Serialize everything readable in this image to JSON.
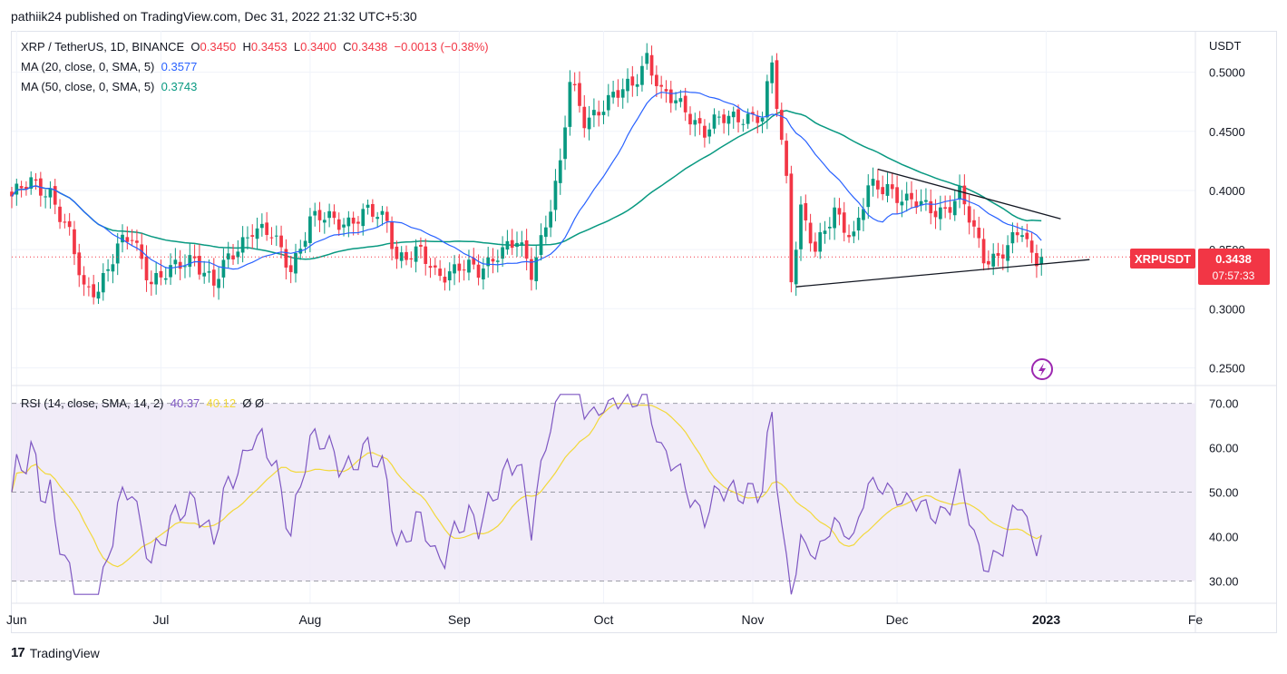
{
  "header": {
    "publisher_text": "pathiik24 published on TradingView.com, Dec 31, 2022 21:32 UTC+5:30"
  },
  "legend": {
    "symbol": "XRP / TetherUS, 1D, BINANCE",
    "o_label": "O",
    "o_value": "0.3450",
    "h_label": "H",
    "h_value": "0.3453",
    "l_label": "L",
    "l_value": "0.3400",
    "c_label": "C",
    "c_value": "0.3438",
    "change": "−0.0013 (−0.38%)",
    "ma20_label": "MA (20, close, 0, SMA, 5)",
    "ma20_value": "0.3577",
    "ma50_label": "MA (50, close, 0, SMA, 5)",
    "ma50_value": "0.3743",
    "rsi_label": "RSI (14, close, SMA, 14, 2)",
    "rsi_value": "40.37",
    "rsi_ma_value": "40.12",
    "rsi_extra": "Ø  Ø"
  },
  "price_badge": {
    "symbol": "XRPUSDT",
    "price": "0.3438",
    "countdown": "07:57:33"
  },
  "footer": {
    "brand": "TradingView",
    "logo_text": "17"
  },
  "colors": {
    "up": "#089981",
    "down": "#f23645",
    "ma20": "#2962ff",
    "ma50": "#089981",
    "rsi": "#7e57c2",
    "rsi_ma": "#f2d83a",
    "rsi_band": "#ede7f6",
    "lightning_icon": "#9c27b0"
  },
  "chart_data": [
    {
      "type": "candlestick",
      "title": "XRP / TetherUS, 1D, BINANCE",
      "y_unit": "USDT",
      "ylim": [
        0.235,
        0.535
      ],
      "y_ticks": [
        "0.5000",
        "0.4500",
        "0.4000",
        "0.3500",
        "0.3000",
        "0.2500"
      ],
      "x_ticks": [
        "Jun",
        "Jul",
        "Aug",
        "Sep",
        "Oct",
        "Nov",
        "Dec",
        "2023",
        "Fe"
      ],
      "x_range": [
        "2022-05-31",
        "2023-02-01"
      ],
      "close_anchors": [
        [
          "2022-05-31",
          0.395
        ],
        [
          "2022-06-04",
          0.405
        ],
        [
          "2022-06-08",
          0.4
        ],
        [
          "2022-06-12",
          0.36
        ],
        [
          "2022-06-15",
          0.315
        ],
        [
          "2022-06-18",
          0.32
        ],
        [
          "2022-06-22",
          0.35
        ],
        [
          "2022-06-25",
          0.36
        ],
        [
          "2022-06-29",
          0.325
        ],
        [
          "2022-07-03",
          0.33
        ],
        [
          "2022-07-08",
          0.345
        ],
        [
          "2022-07-12",
          0.32
        ],
        [
          "2022-07-15",
          0.34
        ],
        [
          "2022-07-20",
          0.37
        ],
        [
          "2022-07-24",
          0.36
        ],
        [
          "2022-07-28",
          0.335
        ],
        [
          "2022-08-01",
          0.375
        ],
        [
          "2022-08-05",
          0.375
        ],
        [
          "2022-08-09",
          0.375
        ],
        [
          "2022-08-13",
          0.38
        ],
        [
          "2022-08-17",
          0.375
        ],
        [
          "2022-08-19",
          0.345
        ],
        [
          "2022-08-24",
          0.345
        ],
        [
          "2022-08-27",
          0.33
        ],
        [
          "2022-09-01",
          0.335
        ],
        [
          "2022-09-05",
          0.33
        ],
        [
          "2022-09-09",
          0.35
        ],
        [
          "2022-09-13",
          0.355
        ],
        [
          "2022-09-16",
          0.33
        ],
        [
          "2022-09-19",
          0.375
        ],
        [
          "2022-09-22",
          0.42
        ],
        [
          "2022-09-24",
          0.49
        ],
        [
          "2022-09-27",
          0.46
        ],
        [
          "2022-09-30",
          0.47
        ],
        [
          "2022-10-04",
          0.48
        ],
        [
          "2022-10-07",
          0.49
        ],
        [
          "2022-10-10",
          0.515
        ],
        [
          "2022-10-13",
          0.48
        ],
        [
          "2022-10-18",
          0.47
        ],
        [
          "2022-10-22",
          0.45
        ],
        [
          "2022-10-26",
          0.46
        ],
        [
          "2022-10-30",
          0.465
        ],
        [
          "2022-11-03",
          0.46
        ],
        [
          "2022-11-05",
          0.505
        ],
        [
          "2022-11-08",
          0.41
        ],
        [
          "2022-11-09",
          0.33
        ],
        [
          "2022-11-11",
          0.385
        ],
        [
          "2022-11-14",
          0.345
        ],
        [
          "2022-11-18",
          0.385
        ],
        [
          "2022-11-22",
          0.36
        ],
        [
          "2022-11-25",
          0.4
        ],
        [
          "2022-11-29",
          0.405
        ],
        [
          "2022-12-03",
          0.39
        ],
        [
          "2022-12-07",
          0.385
        ],
        [
          "2022-12-11",
          0.385
        ],
        [
          "2022-12-14",
          0.395
        ],
        [
          "2022-12-16",
          0.375
        ],
        [
          "2022-12-19",
          0.345
        ],
        [
          "2022-12-22",
          0.345
        ],
        [
          "2022-12-25",
          0.355
        ],
        [
          "2022-12-27",
          0.365
        ],
        [
          "2022-12-29",
          0.345
        ],
        [
          "2022-12-31",
          0.3438
        ]
      ],
      "series": [
        {
          "name": "MA (20, close, 0, SMA, 5)",
          "last": 0.3577
        },
        {
          "name": "MA (50, close, 0, SMA, 5)",
          "last": 0.3743
        }
      ],
      "annotations": {
        "triangle_upper": [
          [
            "2022-11-27",
            0.418
          ],
          [
            "2023-01-04",
            0.376
          ]
        ],
        "triangle_lower": [
          [
            "2022-11-10",
            0.3185
          ],
          [
            "2023-01-10",
            0.3415
          ]
        ],
        "last_price_line": 0.3438
      }
    },
    {
      "type": "line",
      "title": "RSI (14, close, SMA, 14, 2)",
      "ylim": [
        25,
        74
      ],
      "y_ticks": [
        "70.00",
        "60.00",
        "50.00",
        "40.00",
        "30.00"
      ],
      "bands": {
        "upper": 70,
        "middle": 50,
        "lower": 30
      },
      "series": [
        {
          "name": "RSI",
          "last": 40.37
        },
        {
          "name": "RSI SMA",
          "last": 40.12
        }
      ]
    }
  ]
}
